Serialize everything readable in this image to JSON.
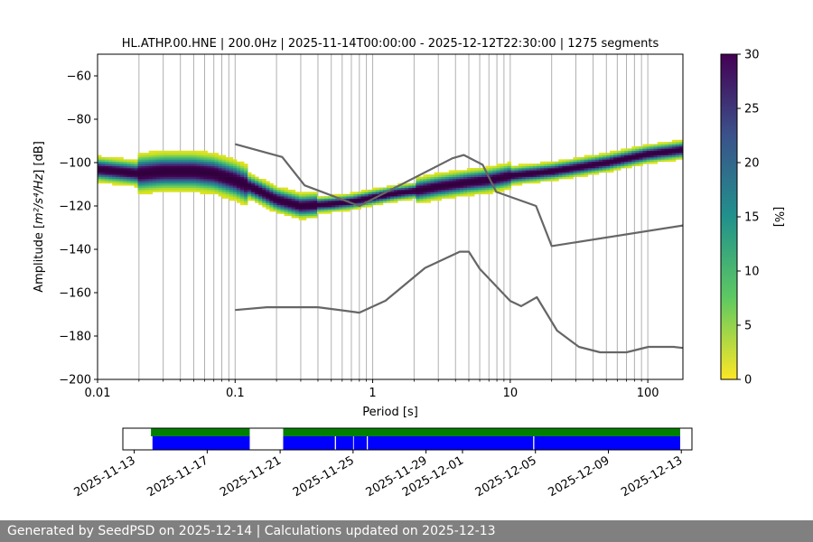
{
  "chart_data": [
    {
      "type": "heatmap",
      "title": "HL.ATHP.00.HNE | 200.0Hz | 2025-11-14T00:00:00 - 2025-12-12T22:30:00 | 1275 segments",
      "xlabel": "Period [s]",
      "ylabel_prefix": "Amplitude [",
      "ylabel_unit": "m²/s⁴/Hz",
      "ylabel_suffix": "] [dB]",
      "xscale": "log",
      "xlim": [
        0.01,
        180
      ],
      "ylim": [
        -200,
        -50
      ],
      "x_ticks": [
        0.01,
        0.1,
        1,
        10,
        100
      ],
      "x_tick_labels": [
        "0.01",
        "0.1",
        "1",
        "10",
        "100"
      ],
      "y_ticks": [
        -200,
        -180,
        -160,
        -140,
        -120,
        -100,
        -80,
        -60
      ],
      "y_tick_labels": [
        "−200",
        "−180",
        "−160",
        "−140",
        "−120",
        "−100",
        "−80",
        "−60"
      ],
      "grid": "vertical",
      "colorbar": {
        "label": "[%]",
        "min": 0,
        "max": 30,
        "ticks": [
          0,
          5,
          10,
          15,
          20,
          25,
          30
        ],
        "tick_labels": [
          "0",
          "5",
          "10",
          "15",
          "20",
          "25",
          "30"
        ],
        "colormap": "viridis_r"
      },
      "psd_mode": {
        "x": [
          0.01,
          0.02,
          0.03,
          0.05,
          0.07,
          0.1,
          0.15,
          0.2,
          0.3,
          0.5,
          0.7,
          1,
          1.5,
          2,
          3,
          5,
          7,
          10,
          20,
          50,
          100,
          180
        ],
        "y": [
          -103,
          -105,
          -104,
          -104,
          -105,
          -108,
          -113,
          -117,
          -120,
          -119,
          -118,
          -116,
          -114,
          -113,
          -111,
          -109,
          -108,
          -106,
          -104,
          -100,
          -96,
          -94
        ]
      },
      "reference_curves": [
        {
          "name": "high-noise-model",
          "x": [
            0.1,
            0.22,
            0.32,
            0.8,
            3.8,
            4.6,
            6.3,
            7.9,
            15.4,
            20,
            180
          ],
          "y": [
            -91.5,
            -97.4,
            -110.5,
            -120,
            -98,
            -96.5,
            -101,
            -113.5,
            -120,
            -138.5,
            -129
          ]
        },
        {
          "name": "low-noise-model",
          "x": [
            0.1,
            0.17,
            0.4,
            0.8,
            1.24,
            2.4,
            4.3,
            5.0,
            6.0,
            10.0,
            12.0,
            15.6,
            21.9,
            31.6,
            45,
            70,
            101,
            154,
            180
          ],
          "y": [
            -168,
            -166.7,
            -166.7,
            -169.2,
            -163.7,
            -148.6,
            -141.1,
            -141.1,
            -149,
            -163.8,
            -166.2,
            -162.1,
            -177.5,
            -185,
            -187.5,
            -187.5,
            -185,
            -185,
            -185.5
          ]
        }
      ],
      "colors": {
        "reference_curve": "#666666",
        "grid": "#b0b0b0",
        "mode": "#440154"
      }
    },
    {
      "type": "timeline",
      "x_tick_labels": [
        "2025-11-13",
        "2025-11-17",
        "2025-11-21",
        "2025-11-25",
        "2025-11-29",
        "2025-12-01",
        "2025-12-05",
        "2025-12-09",
        "2025-12-13"
      ],
      "x_tick_dates": [
        "2025-11-13",
        "2025-11-17",
        "2025-11-21",
        "2025-11-25",
        "2025-11-29",
        "2025-12-01",
        "2025-12-05",
        "2025-12-09",
        "2025-12-13"
      ],
      "range": [
        "2025-11-12T09:00:00",
        "2025-12-13T14:00:00"
      ],
      "data_availability": [
        [
          "2025-11-13T22:00:00",
          "2025-11-19T08:00:00"
        ],
        [
          "2025-11-21T04:00:00",
          "2025-12-12T22:30:00"
        ]
      ],
      "psd_segments": [
        [
          "2025-11-14T00:00:00",
          "2025-11-19T08:00:00"
        ],
        [
          "2025-11-21T04:00:00",
          "2025-11-24T00:00:00"
        ],
        [
          "2025-11-24T01:30:00",
          "2025-11-25T00:00:00"
        ],
        [
          "2025-11-25T01:00:00",
          "2025-11-25T18:00:00"
        ],
        [
          "2025-11-25T19:30:00",
          "2025-12-04T21:00:00"
        ],
        [
          "2025-12-04T22:30:00",
          "2025-12-12T22:30:00"
        ]
      ],
      "colors": {
        "availability": "#008000",
        "segments": "#0000ff"
      }
    }
  ],
  "footer": {
    "text": "Generated by SeedPSD on 2025-12-14 | Calculations updated on 2025-12-13",
    "background": "#808080"
  }
}
